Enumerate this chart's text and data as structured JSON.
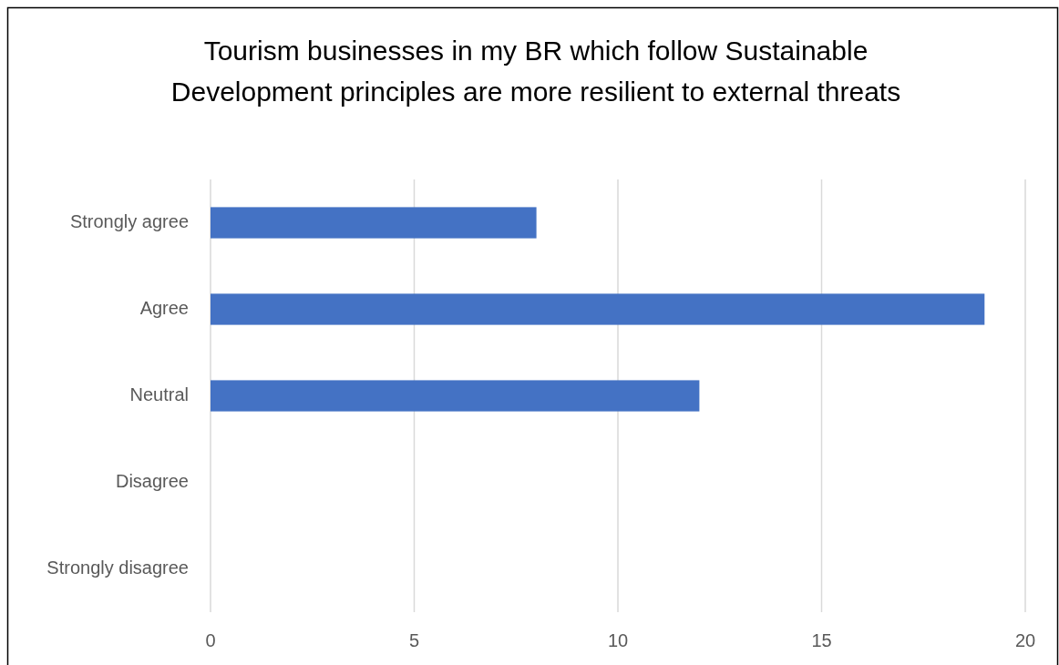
{
  "chart_data": {
    "type": "bar",
    "orientation": "horizontal",
    "title": "Tourism businesses in my BR which follow Sustainable Development principles are more resilient to external threats",
    "categories": [
      "Strongly agree",
      "Agree",
      "Neutral",
      "Disagree",
      "Strongly disagree"
    ],
    "values": [
      8,
      19,
      12,
      0,
      0
    ],
    "color": "#4472c4",
    "xlim": [
      0,
      20
    ],
    "xticks": [
      0,
      5,
      10,
      15,
      20
    ],
    "grid": "x"
  }
}
